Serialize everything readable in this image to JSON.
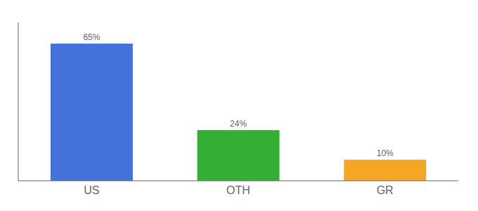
{
  "chart_data": {
    "type": "bar",
    "categories": [
      "US",
      "OTH",
      "GR"
    ],
    "values": [
      65,
      24,
      10
    ],
    "value_labels": [
      "65%",
      "24%",
      "10%"
    ],
    "colors": [
      "#4472db",
      "#33b033",
      "#f5a623"
    ],
    "ylim": [
      0,
      75
    ],
    "grid": false,
    "data_labels": true,
    "tick_labels": "x"
  }
}
